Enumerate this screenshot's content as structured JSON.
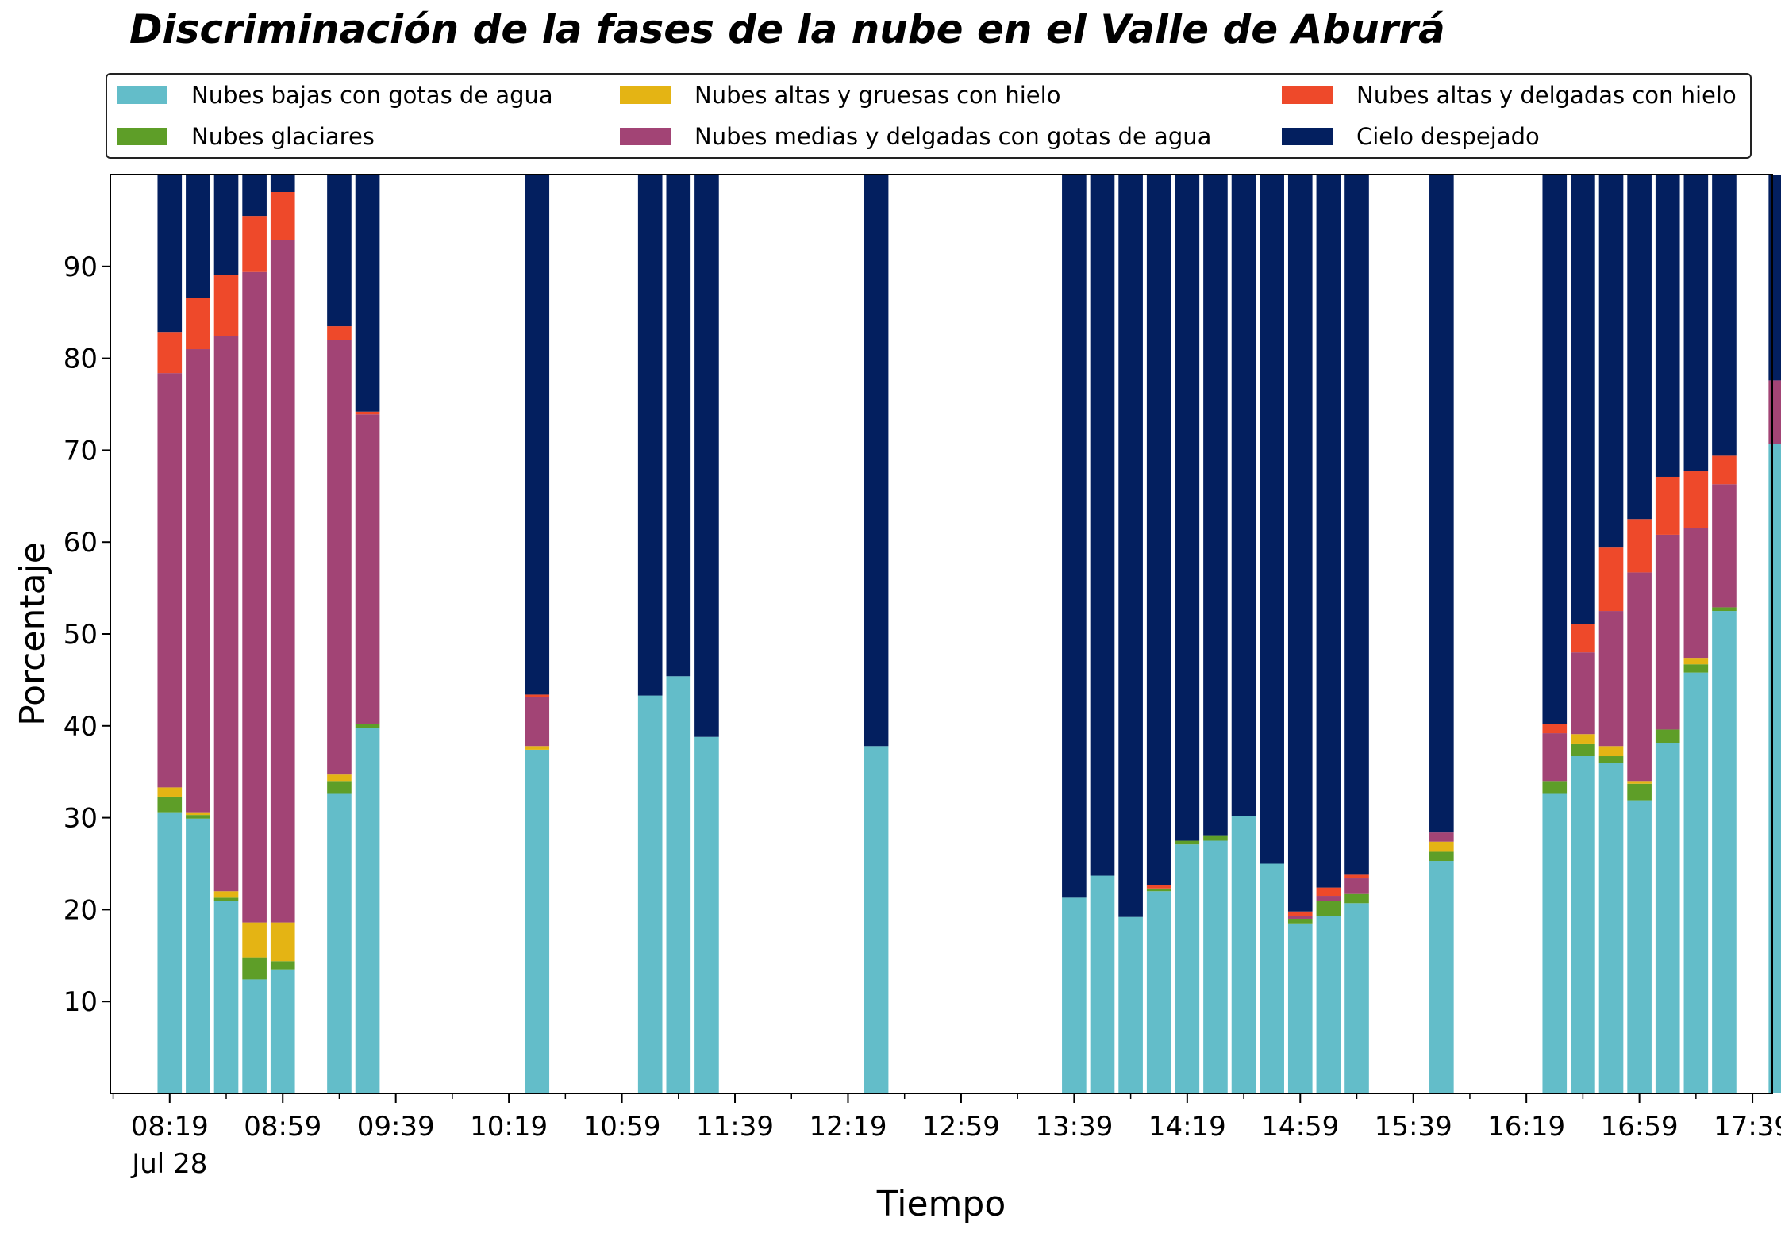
{
  "chart_data": {
    "type": "bar",
    "stacked": true,
    "title": "Discriminación de la fases de la nube en el Valle de Aburrá",
    "xlabel": "Tiempo",
    "ylabel": "Porcentaje",
    "ylim": [
      0,
      100
    ],
    "y_ticks": [
      10,
      20,
      30,
      40,
      50,
      60,
      70,
      80,
      90
    ],
    "x_range_minutes": [
      478,
      1066
    ],
    "x_ticks": [
      {
        "minute": 499,
        "label": "08:19",
        "sublabel": "Jul 28"
      },
      {
        "minute": 539,
        "label": "08:59"
      },
      {
        "minute": 579,
        "label": "09:39"
      },
      {
        "minute": 619,
        "label": "10:19"
      },
      {
        "minute": 659,
        "label": "10:59"
      },
      {
        "minute": 699,
        "label": "11:39"
      },
      {
        "minute": 739,
        "label": "12:19"
      },
      {
        "minute": 779,
        "label": "12:59"
      },
      {
        "minute": 819,
        "label": "13:39"
      },
      {
        "minute": 859,
        "label": "14:19"
      },
      {
        "minute": 899,
        "label": "14:59"
      },
      {
        "minute": 939,
        "label": "15:39"
      },
      {
        "minute": 979,
        "label": "16:19"
      },
      {
        "minute": 1019,
        "label": "16:59"
      },
      {
        "minute": 1059,
        "label": "17:39"
      }
    ],
    "x_minor_step_minutes": 20,
    "grid": false,
    "legend_position": "top (above plot), 3 columns",
    "series": [
      {
        "name": "Nubes bajas con gotas de agua",
        "color": "#63bdc9"
      },
      {
        "name": "Nubes glaciares",
        "color": "#5e9e28"
      },
      {
        "name": "Nubes altas y gruesas con hielo",
        "color": "#e4b414"
      },
      {
        "name": "Nubes medias y delgadas con gotas de agua",
        "color": "#a24475"
      },
      {
        "name": "Nubes altas y delgadas con hielo",
        "color": "#ee492a"
      },
      {
        "name": "Cielo despejado",
        "color": "#031f5f"
      }
    ],
    "bars": [
      {
        "time": "08:19",
        "values": [
          30.6,
          1.7,
          1.0,
          45.1,
          4.4,
          17.2
        ]
      },
      {
        "time": "08:29",
        "values": [
          29.9,
          0.4,
          0.3,
          50.4,
          5.6,
          13.4
        ]
      },
      {
        "time": "08:39",
        "values": [
          20.9,
          0.4,
          0.7,
          60.4,
          6.7,
          10.9
        ]
      },
      {
        "time": "08:49",
        "values": [
          12.4,
          2.4,
          3.8,
          70.8,
          6.1,
          4.5
        ]
      },
      {
        "time": "08:59",
        "values": [
          13.5,
          0.9,
          4.2,
          74.3,
          5.2,
          1.9
        ]
      },
      {
        "time": "09:19",
        "values": [
          32.6,
          1.4,
          0.7,
          47.3,
          1.5,
          16.5
        ]
      },
      {
        "time": "09:29",
        "values": [
          39.8,
          0.4,
          0.0,
          33.7,
          0.3,
          25.8
        ]
      },
      {
        "time": "10:29",
        "values": [
          37.4,
          0.0,
          0.4,
          5.3,
          0.3,
          56.6
        ]
      },
      {
        "time": "11:09",
        "values": [
          43.3,
          0.0,
          0.0,
          0.0,
          0.0,
          56.7
        ]
      },
      {
        "time": "11:19",
        "values": [
          45.4,
          0.0,
          0.0,
          0.0,
          0.0,
          54.6
        ]
      },
      {
        "time": "11:29",
        "values": [
          38.8,
          0.0,
          0.0,
          0.0,
          0.0,
          61.2
        ]
      },
      {
        "time": "12:29",
        "values": [
          37.8,
          0.0,
          0.0,
          0.0,
          0.0,
          62.2
        ]
      },
      {
        "time": "13:39",
        "values": [
          21.3,
          0.0,
          0.0,
          0.0,
          0.0,
          78.7
        ]
      },
      {
        "time": "13:49",
        "values": [
          23.7,
          0.0,
          0.0,
          0.0,
          0.0,
          76.3
        ]
      },
      {
        "time": "13:59",
        "values": [
          19.2,
          0.0,
          0.0,
          0.0,
          0.0,
          80.8
        ]
      },
      {
        "time": "14:09",
        "values": [
          22.0,
          0.3,
          0.0,
          0.0,
          0.4,
          77.3
        ]
      },
      {
        "time": "14:19",
        "values": [
          27.1,
          0.4,
          0.0,
          0.0,
          0.0,
          72.5
        ]
      },
      {
        "time": "14:29",
        "values": [
          27.5,
          0.6,
          0.0,
          0.0,
          0.0,
          71.9
        ]
      },
      {
        "time": "14:39",
        "values": [
          30.2,
          0.0,
          0.0,
          0.0,
          0.0,
          69.8
        ]
      },
      {
        "time": "14:49",
        "values": [
          25.0,
          0.0,
          0.0,
          0.0,
          0.0,
          75.0
        ]
      },
      {
        "time": "14:59",
        "values": [
          18.5,
          0.5,
          0.0,
          0.3,
          0.5,
          80.2
        ]
      },
      {
        "time": "15:09",
        "values": [
          19.3,
          1.6,
          0.0,
          0.6,
          0.9,
          77.6
        ]
      },
      {
        "time": "15:19",
        "values": [
          20.7,
          1.0,
          0.0,
          1.7,
          0.4,
          76.2
        ]
      },
      {
        "time": "15:49",
        "values": [
          25.3,
          1.0,
          1.1,
          1.0,
          0.0,
          71.6
        ]
      },
      {
        "time": "16:29",
        "values": [
          32.6,
          1.4,
          0.0,
          5.2,
          1.0,
          59.8
        ]
      },
      {
        "time": "16:39",
        "values": [
          36.7,
          1.3,
          1.1,
          8.9,
          3.1,
          48.9
        ]
      },
      {
        "time": "16:49",
        "values": [
          36.0,
          0.7,
          1.1,
          14.7,
          6.9,
          40.6
        ]
      },
      {
        "time": "16:59",
        "values": [
          31.9,
          1.8,
          0.3,
          22.7,
          5.8,
          37.5
        ]
      },
      {
        "time": "17:09",
        "values": [
          38.1,
          1.5,
          0.0,
          21.2,
          6.3,
          32.9
        ]
      },
      {
        "time": "17:19",
        "values": [
          45.8,
          0.9,
          0.7,
          14.1,
          6.2,
          32.3
        ]
      },
      {
        "time": "17:29",
        "values": [
          52.5,
          0.4,
          0.0,
          13.4,
          3.1,
          30.6
        ]
      },
      {
        "time": "17:49",
        "values": [
          70.7,
          0.0,
          0.0,
          6.9,
          0.0,
          22.4
        ]
      }
    ]
  }
}
